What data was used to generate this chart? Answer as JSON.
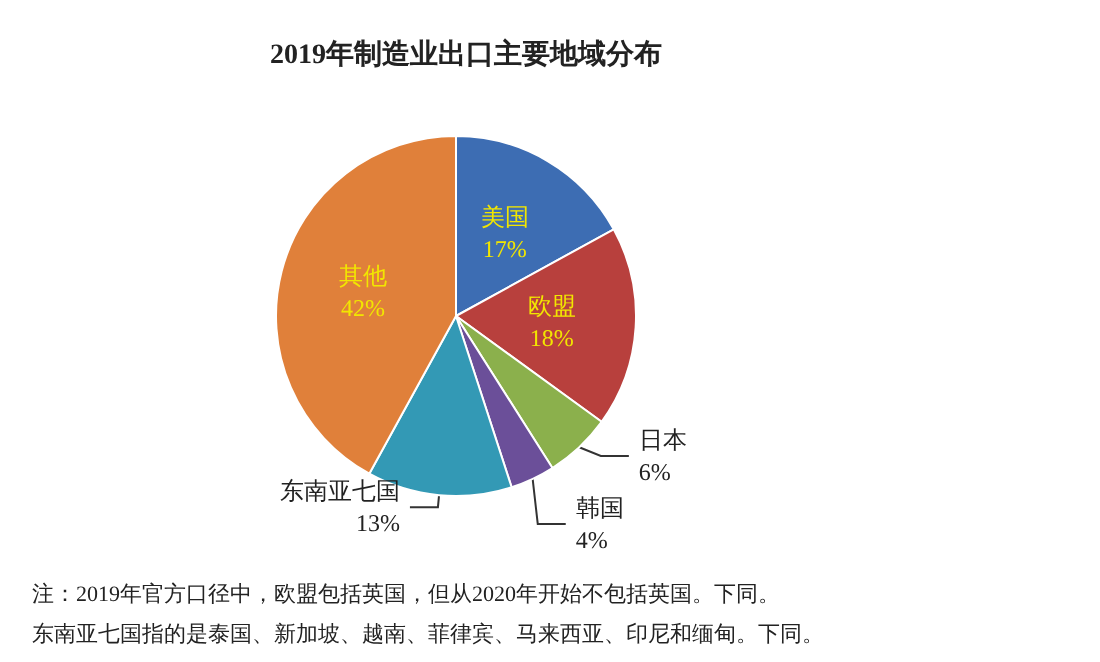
{
  "chart_data": {
    "type": "pie",
    "title": "2019年制造业出口主要地域分布",
    "categories": [
      "美国",
      "欧盟",
      "日本",
      "韩国",
      "东南亚七国",
      "其他"
    ],
    "values": [
      17,
      18,
      6,
      4,
      13,
      42
    ],
    "colors": [
      "#3d6db3",
      "#b8403d",
      "#8bb04c",
      "#6b4f99",
      "#3399b5",
      "#e0803a"
    ],
    "value_labels": [
      "17%",
      "18%",
      "6%",
      "4%",
      "13%",
      "42%"
    ],
    "legend": false,
    "annotations": [
      "注：2019年官方口径中，欧盟包括英国，但从2020年开始不包括英国。下同。",
      "东南亚七国指的是泰国、新加坡、越南、菲律宾、马来西亚、印尼和缅甸。下同。"
    ]
  }
}
